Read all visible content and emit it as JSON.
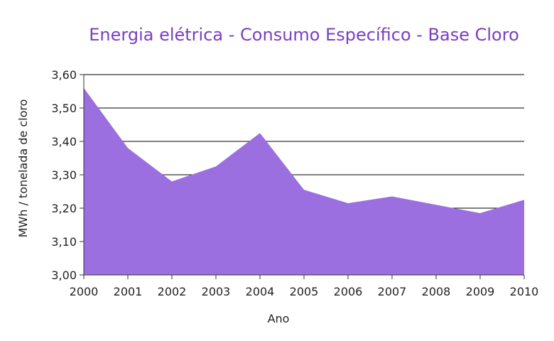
{
  "chart_data": {
    "type": "area",
    "title": "Energia elétrica - Consumo Específico - Base Cloro",
    "xlabel": "Ano",
    "ylabel": "MWh / tonelada de cloro",
    "x": [
      "2000",
      "2001",
      "2002",
      "2003",
      "2004",
      "2005",
      "2006",
      "2007",
      "2008",
      "2009",
      "2010"
    ],
    "series": [
      {
        "values": [
          3.56,
          3.38,
          3.28,
          3.325,
          3.425,
          3.255,
          3.215,
          3.235,
          3.21,
          3.185,
          3.225
        ]
      }
    ],
    "ylim": [
      3.0,
      3.6
    ],
    "yticks": [
      "3,00",
      "3,10",
      "3,20",
      "3,30",
      "3,40",
      "3,50",
      "3,60"
    ],
    "grid": true,
    "color": "#9b6fe0"
  }
}
